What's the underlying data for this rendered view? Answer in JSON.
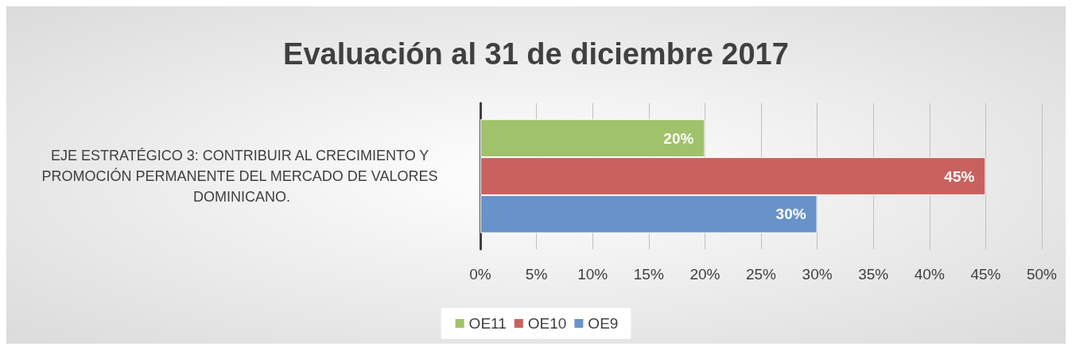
{
  "chart_data": {
    "type": "bar",
    "orientation": "horizontal",
    "title": "Evaluación al 31 de diciembre 2017",
    "categories": [
      "EJE ESTRATÉGICO 3: CONTRIBUIR AL CRECIMIENTO Y PROMOCIÓN PERMANENTE DEL MERCADO DE VALORES DOMINICANO."
    ],
    "series": [
      {
        "name": "OE11",
        "color": "#9fc26a",
        "values": [
          20
        ],
        "value_labels": [
          "20%"
        ]
      },
      {
        "name": "OE10",
        "color": "#c9615f",
        "values": [
          45
        ],
        "value_labels": [
          "45%"
        ]
      },
      {
        "name": "OE9",
        "color": "#6893c8",
        "values": [
          30
        ],
        "value_labels": [
          "30%"
        ]
      }
    ],
    "xlim": [
      0,
      50
    ],
    "xticks": [
      {
        "value": 0,
        "label": "0%"
      },
      {
        "value": 5,
        "label": "5%"
      },
      {
        "value": 10,
        "label": "10%"
      },
      {
        "value": 15,
        "label": "15%"
      },
      {
        "value": 20,
        "label": "20%"
      },
      {
        "value": 25,
        "label": "25%"
      },
      {
        "value": 30,
        "label": "30%"
      },
      {
        "value": 35,
        "label": "35%"
      },
      {
        "value": 40,
        "label": "40%"
      },
      {
        "value": 45,
        "label": "45%"
      },
      {
        "value": 50,
        "label": "50%"
      }
    ],
    "grid": "x",
    "legend": "bottom"
  }
}
